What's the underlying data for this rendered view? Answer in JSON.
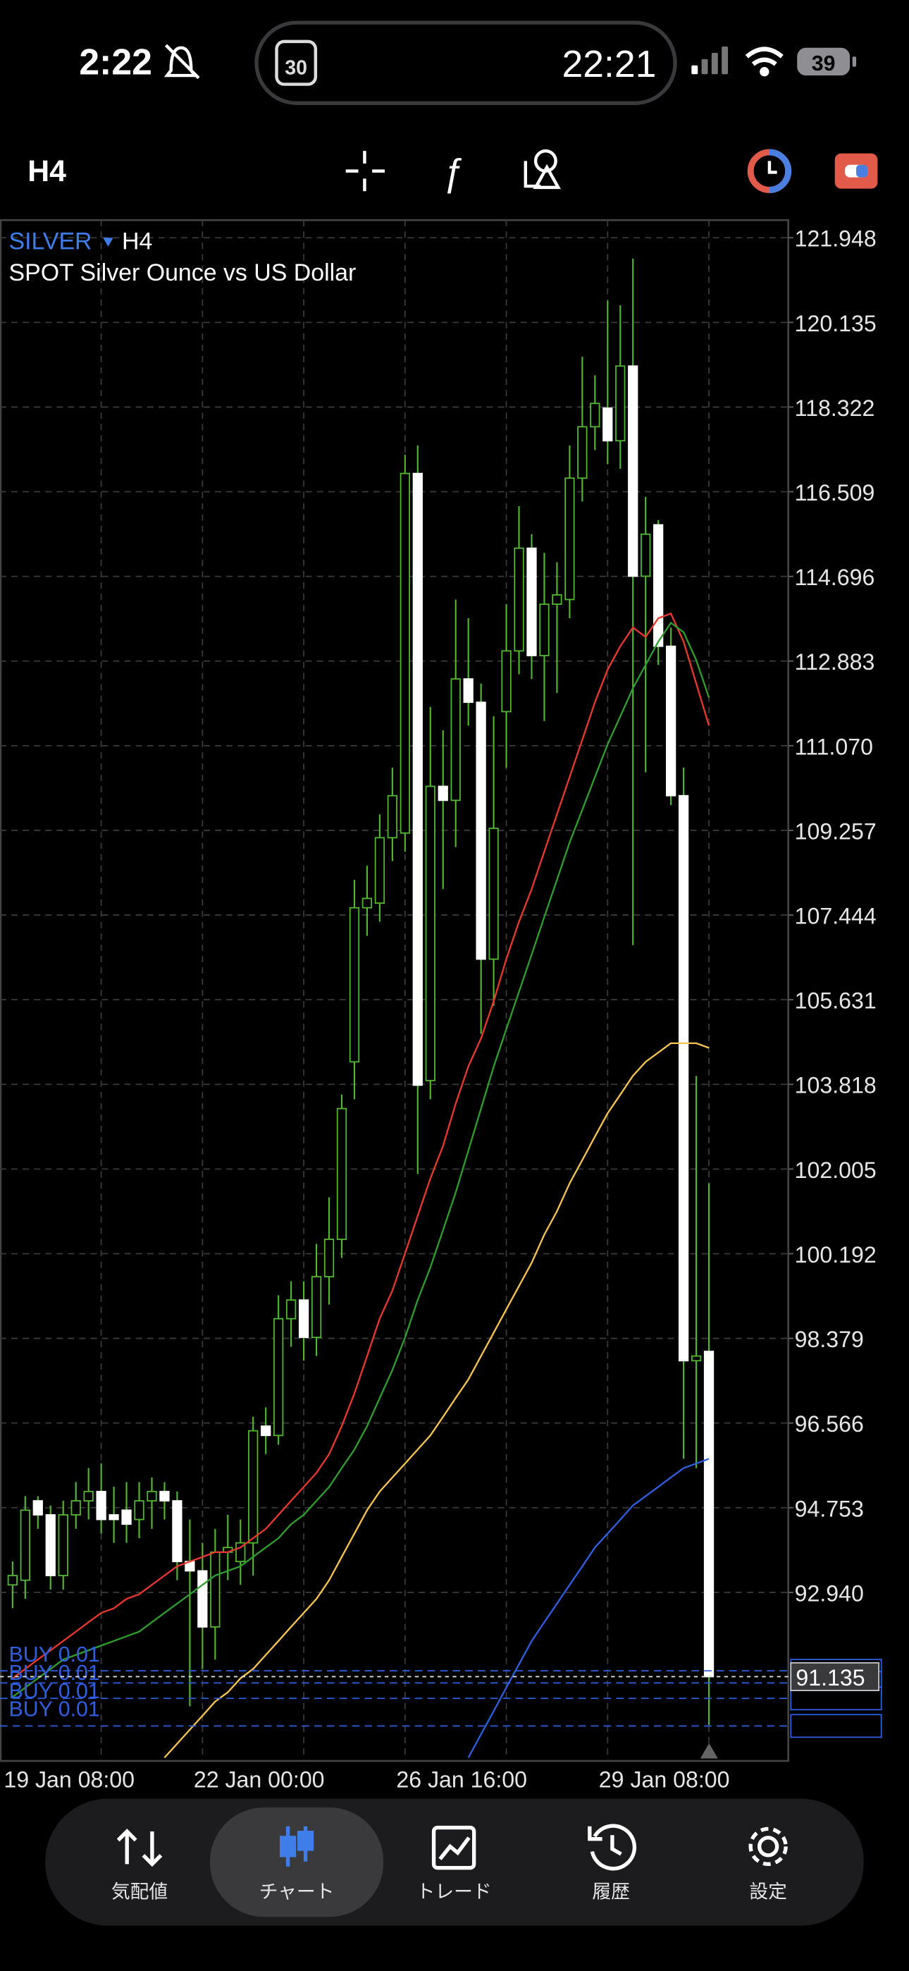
{
  "status_bar": {
    "time": "2:22",
    "calendar_day": "30",
    "island_time": "22:21",
    "battery": "39"
  },
  "toolbar": {
    "timeframe": "H4"
  },
  "chart_data": {
    "type": "candlestick",
    "symbol": "SILVER",
    "timeframe": "H4",
    "description": "SPOT Silver Ounce vs US Dollar",
    "categories": [
      "19 Jan 08:00",
      null,
      null,
      null,
      null,
      null,
      null,
      null,
      null,
      null,
      null,
      null,
      null,
      null,
      null,
      "22 Jan 00:00",
      null,
      null,
      null,
      null,
      null,
      null,
      null,
      null,
      null,
      null,
      null,
      null,
      null,
      null,
      null,
      "26 Jan 16:00",
      null,
      null,
      null,
      null,
      null,
      null,
      null,
      null,
      null,
      null,
      null,
      null,
      null,
      null,
      null,
      "29 Jan 08:00",
      null,
      null,
      null,
      null,
      null,
      null,
      null,
      null
    ],
    "open": [
      93.1,
      93.2,
      94.9,
      94.6,
      93.3,
      94.6,
      94.9,
      95.1,
      94.6,
      94.7,
      94.5,
      94.9,
      95.1,
      94.9,
      93.6,
      93.4,
      92.2,
      93.8,
      93.6,
      94.0,
      96.5,
      96.3,
      98.8,
      99.2,
      98.4,
      99.7,
      100.5,
      104.3,
      107.6,
      107.7,
      109.1,
      109.2,
      116.9,
      103.9,
      110.2,
      109.9,
      112.5,
      112.0,
      106.5,
      111.8,
      113.1,
      115.3,
      113.0,
      114.1,
      114.2,
      116.8,
      117.9,
      118.3,
      117.6,
      119.2,
      114.7,
      115.8,
      113.2,
      110.0,
      97.9,
      98.1
    ],
    "high": [
      93.6,
      95.0,
      95.0,
      94.8,
      94.9,
      95.3,
      95.6,
      95.7,
      95.2,
      95.3,
      95.3,
      95.4,
      95.3,
      95.1,
      94.5,
      94.0,
      94.3,
      94.6,
      94.5,
      96.7,
      96.9,
      99.3,
      99.6,
      99.6,
      100.4,
      101.4,
      103.6,
      108.2,
      108.5,
      109.6,
      110.6,
      117.3,
      117.5,
      111.9,
      111.4,
      114.2,
      113.8,
      112.4,
      111.7,
      114.1,
      116.2,
      115.6,
      115.2,
      115.0,
      117.5,
      119.4,
      119.0,
      120.6,
      120.5,
      121.5,
      116.4,
      115.9,
      113.6,
      110.6,
      104.0,
      101.7
    ],
    "low": [
      92.6,
      92.8,
      94.3,
      93.0,
      93.0,
      94.3,
      94.5,
      94.2,
      94.0,
      94.0,
      94.1,
      94.3,
      94.5,
      93.2,
      90.5,
      91.3,
      91.5,
      93.2,
      93.1,
      93.3,
      95.9,
      96.1,
      98.2,
      97.9,
      98.0,
      99.1,
      100.1,
      103.5,
      107.0,
      107.3,
      108.6,
      108.8,
      101.9,
      103.5,
      108.0,
      108.9,
      111.5,
      104.9,
      105.5,
      110.6,
      112.6,
      112.5,
      111.6,
      112.2,
      113.8,
      116.3,
      117.4,
      117.1,
      117.0,
      106.8,
      110.5,
      112.8,
      109.8,
      95.8,
      95.6,
      90.1
    ],
    "close": [
      93.3,
      94.7,
      94.6,
      93.3,
      94.6,
      94.9,
      95.1,
      94.5,
      94.5,
      94.4,
      94.9,
      95.1,
      94.9,
      93.6,
      93.4,
      92.2,
      93.8,
      93.9,
      94.0,
      96.4,
      96.3,
      98.8,
      99.2,
      98.4,
      99.7,
      100.5,
      103.3,
      107.6,
      107.8,
      109.1,
      110.0,
      116.9,
      103.8,
      110.2,
      109.9,
      112.5,
      112.0,
      106.5,
      109.3,
      113.1,
      115.3,
      113.0,
      114.1,
      114.3,
      116.8,
      117.9,
      118.4,
      117.6,
      119.2,
      114.7,
      115.6,
      113.2,
      110.0,
      97.9,
      98.0,
      91.135
    ],
    "up_color": "#52b830",
    "down_color": "#ffffff",
    "moving_averages": [
      {
        "color": "#e8392f",
        "values": [
          91.1,
          91.3,
          91.5,
          91.7,
          91.9,
          92.1,
          92.3,
          92.5,
          92.6,
          92.8,
          92.9,
          93.1,
          93.3,
          93.5,
          93.6,
          93.7,
          93.8,
          93.8,
          93.9,
          94.1,
          94.3,
          94.6,
          94.9,
          95.2,
          95.5,
          95.9,
          96.5,
          97.2,
          98.0,
          98.8,
          99.4,
          100.2,
          101.0,
          101.8,
          102.5,
          103.4,
          104.2,
          104.8,
          105.6,
          106.5,
          107.3,
          108.0,
          108.8,
          109.6,
          110.4,
          111.2,
          112.0,
          112.7,
          113.2,
          113.6,
          113.4,
          113.8,
          113.9,
          113.3,
          112.4,
          111.5
        ]
      },
      {
        "color": "#2f9e2f",
        "values": [
          90.7,
          90.9,
          91.1,
          91.3,
          91.5,
          91.6,
          91.7,
          91.8,
          91.9,
          92.0,
          92.1,
          92.3,
          92.5,
          92.7,
          92.9,
          93.1,
          93.3,
          93.4,
          93.5,
          93.7,
          93.9,
          94.1,
          94.4,
          94.6,
          94.9,
          95.2,
          95.6,
          96.0,
          96.5,
          97.1,
          97.7,
          98.4,
          99.2,
          99.9,
          100.7,
          101.5,
          102.4,
          103.3,
          104.2,
          105.0,
          105.8,
          106.6,
          107.4,
          108.2,
          109.0,
          109.7,
          110.4,
          111.1,
          111.7,
          112.3,
          112.8,
          113.3,
          113.7,
          113.5,
          112.9,
          112.1
        ]
      },
      {
        "color": "#f5c451",
        "values": [
          null,
          null,
          null,
          null,
          null,
          null,
          null,
          null,
          null,
          null,
          null,
          null,
          89.4,
          89.7,
          90.0,
          90.3,
          90.6,
          90.8,
          91.1,
          91.3,
          91.6,
          91.9,
          92.2,
          92.5,
          92.8,
          93.2,
          93.7,
          94.2,
          94.7,
          95.1,
          95.4,
          95.7,
          96.0,
          96.3,
          96.7,
          97.1,
          97.5,
          98.0,
          98.5,
          99.0,
          99.5,
          100.0,
          100.6,
          101.1,
          101.7,
          102.2,
          102.7,
          103.2,
          103.6,
          104.0,
          104.3,
          104.5,
          104.7,
          104.7,
          104.7,
          104.6
        ]
      },
      {
        "color": "#2f5fe0",
        "values": [
          null,
          null,
          null,
          null,
          null,
          null,
          null,
          null,
          null,
          null,
          null,
          null,
          null,
          null,
          null,
          null,
          null,
          null,
          null,
          null,
          null,
          null,
          null,
          null,
          null,
          null,
          null,
          null,
          null,
          null,
          null,
          null,
          null,
          null,
          null,
          null,
          89.4,
          89.9,
          90.4,
          90.9,
          91.4,
          91.9,
          92.3,
          92.7,
          93.1,
          93.5,
          93.9,
          94.2,
          94.5,
          94.8,
          95.0,
          95.2,
          95.4,
          95.6,
          95.7,
          95.8
        ]
      }
    ],
    "current_price": 91.135,
    "orders": [
      {
        "label": "BUY 0.01",
        "price": 91.26
      },
      {
        "label": "BUY 0.01",
        "price": 91.0
      },
      {
        "label": "BUY 0.01",
        "price": 90.67
      },
      {
        "label": "BUY 0.01",
        "price": 90.08
      }
    ],
    "ylim": [
      89.33,
      122.325
    ],
    "yticks": [
      121.948,
      120.135,
      118.322,
      116.509,
      114.696,
      112.883,
      {
        "value": 111.07,
        "label": "111.070"
      },
      109.257,
      107.444,
      105.631,
      103.818,
      102.005,
      100.192,
      98.379,
      96.566,
      94.753,
      {
        "value": 92.94,
        "label": "92.940"
      }
    ],
    "grid": true
  },
  "nav": {
    "active": 1,
    "items": [
      "気配値",
      "チャート",
      "トレード",
      "履歴",
      "設定"
    ]
  }
}
